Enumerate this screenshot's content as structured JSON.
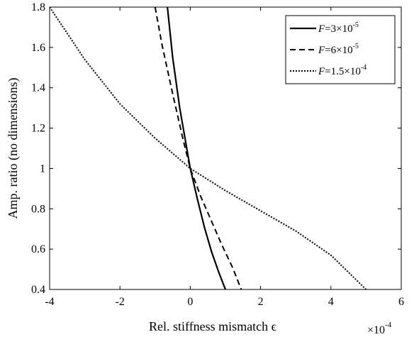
{
  "chart_data": {
    "type": "line",
    "xlabel": "Rel. stiffness mismatch ϵ",
    "ylabel": "Amp. ratio (no dimensions)",
    "x_multiplier": "×10",
    "x_multiplier_exp": "-4",
    "xlim": [
      -4,
      6
    ],
    "ylim": [
      0.4,
      1.8
    ],
    "xticks": [
      -4,
      -2,
      0,
      2,
      4,
      6
    ],
    "xtick_labels": [
      "-4",
      "-2",
      "0",
      "2",
      "4",
      "6"
    ],
    "yticks": [
      0.4,
      0.6,
      0.8,
      1.0,
      1.2,
      1.4,
      1.6,
      1.8
    ],
    "ytick_labels": [
      "0.4",
      "0.6",
      "0.8",
      "1",
      "1.2",
      "1.4",
      "1.6",
      "1.8"
    ],
    "grid": false,
    "legend_position": "top-right",
    "series": [
      {
        "name": "F=3×10-5",
        "legend_pre": "F",
        "legend_mid": "=3×10",
        "legend_exp": "-5",
        "style": "solid",
        "x": [
          -0.65,
          -0.5,
          -0.3,
          -0.1,
          0,
          0.2,
          0.4,
          0.6,
          0.8,
          1.0
        ],
        "y": [
          1.8,
          1.55,
          1.3,
          1.1,
          1.0,
          0.85,
          0.71,
          0.59,
          0.49,
          0.4
        ]
      },
      {
        "name": "F=6×10-5",
        "legend_pre": "F",
        "legend_mid": "=6×10",
        "legend_exp": "-5",
        "style": "dashed",
        "x": [
          -1.0,
          -0.8,
          -0.5,
          -0.2,
          0,
          0.3,
          0.6,
          0.9,
          1.2,
          1.45
        ],
        "y": [
          1.8,
          1.61,
          1.37,
          1.14,
          1.0,
          0.86,
          0.74,
          0.62,
          0.51,
          0.4
        ]
      },
      {
        "name": "F=1.5×10-4",
        "legend_pre": "F",
        "legend_mid": "=1.5×10",
        "legend_exp": "-4",
        "style": "dotted",
        "x": [
          -4.0,
          -3.0,
          -2.0,
          -1.0,
          0,
          1.0,
          2.0,
          3.0,
          4.0,
          5.0
        ],
        "y": [
          1.8,
          1.54,
          1.32,
          1.15,
          1.0,
          0.89,
          0.79,
          0.69,
          0.57,
          0.4
        ]
      }
    ]
  }
}
